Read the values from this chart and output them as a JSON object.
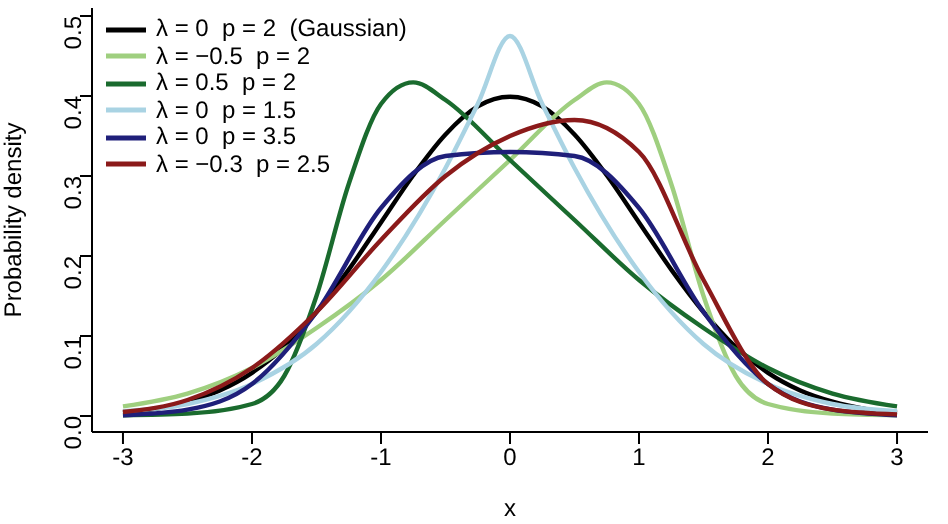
{
  "chart_data": {
    "type": "line",
    "xlabel": "x",
    "ylabel": "Probability density",
    "xlim": [
      -3.24,
      3.24
    ],
    "ylim": [
      -0.02,
      0.51
    ],
    "xticks": [
      -3,
      -2,
      -1,
      0,
      1,
      2,
      3
    ],
    "yticks": [
      {
        "value": 0,
        "label": "0.0"
      },
      0.1,
      0.2,
      0.3,
      0.4,
      {
        "value": 0.5,
        "label": "0.5"
      }
    ],
    "grid": false,
    "legend": "top left",
    "marker": "none",
    "line_style": "solid",
    "series": [
      {
        "name": "λ = 0  p = 2  (Gaussian)",
        "color": "#000000",
        "x": [
          -3,
          -2.75,
          -2.5,
          -2.25,
          -2,
          -1.75,
          -1.5,
          -1.25,
          -1,
          -0.75,
          -0.5,
          -0.25,
          0,
          0.25,
          0.5,
          0.75,
          1,
          1.25,
          1.5,
          1.75,
          2,
          2.25,
          2.5,
          2.75,
          3
        ],
        "values": [
          0.004,
          0.009,
          0.018,
          0.032,
          0.054,
          0.086,
          0.13,
          0.183,
          0.242,
          0.301,
          0.352,
          0.387,
          0.399,
          0.387,
          0.352,
          0.301,
          0.242,
          0.183,
          0.13,
          0.086,
          0.054,
          0.032,
          0.018,
          0.009,
          0.004
        ]
      },
      {
        "name": "λ = −0.5  p = 2",
        "color": "#9fcf7f",
        "x": [
          -3,
          -2.5,
          -2,
          -1.5,
          -1,
          -0.5,
          0,
          0.5,
          0.75,
          1,
          1.25,
          1.5,
          1.75,
          2,
          2.5,
          3
        ],
        "values": [
          0.012,
          0.028,
          0.06,
          0.11,
          0.17,
          0.245,
          0.32,
          0.395,
          0.417,
          0.39,
          0.29,
          0.15,
          0.05,
          0.015,
          0.003,
          0.001
        ]
      },
      {
        "name": "λ = 0.5  p = 2",
        "color": "#1a6b2e",
        "x": [
          -3,
          -2.5,
          -2,
          -1.75,
          -1.5,
          -1.25,
          -1,
          -0.75,
          -0.5,
          0,
          0.5,
          1,
          1.5,
          2,
          2.5,
          3
        ],
        "values": [
          0.001,
          0.003,
          0.015,
          0.05,
          0.15,
          0.29,
          0.39,
          0.417,
          0.395,
          0.32,
          0.245,
          0.17,
          0.11,
          0.06,
          0.028,
          0.012
        ]
      },
      {
        "name": "λ = 0  p = 1.5",
        "color": "#a9d3e3",
        "x": [
          -3,
          -2.5,
          -2,
          -1.5,
          -1,
          -0.5,
          -0.25,
          0,
          0.25,
          0.5,
          1,
          1.5,
          2,
          2.5,
          3
        ],
        "values": [
          0.006,
          0.015,
          0.04,
          0.09,
          0.18,
          0.31,
          0.39,
          0.475,
          0.39,
          0.31,
          0.18,
          0.09,
          0.04,
          0.015,
          0.006
        ]
      },
      {
        "name": "λ = 0  p = 3.5",
        "color": "#1f1f7a",
        "x": [
          -3,
          -2.5,
          -2,
          -1.5,
          -1,
          -0.5,
          0,
          0.5,
          1,
          1.5,
          2,
          2.5,
          3
        ],
        "values": [
          0.001,
          0.008,
          0.04,
          0.13,
          0.26,
          0.325,
          0.33,
          0.325,
          0.26,
          0.13,
          0.04,
          0.008,
          0.001
        ]
      },
      {
        "name": "λ = −0.3  p = 2.5",
        "color": "#8b1a1a",
        "x": [
          -3,
          -2.5,
          -2,
          -1.5,
          -1,
          -0.5,
          0,
          0.5,
          1,
          1.5,
          2,
          2.5,
          3
        ],
        "values": [
          0.005,
          0.02,
          0.06,
          0.13,
          0.22,
          0.3,
          0.35,
          0.37,
          0.33,
          0.17,
          0.04,
          0.008,
          0.002
        ]
      }
    ]
  }
}
